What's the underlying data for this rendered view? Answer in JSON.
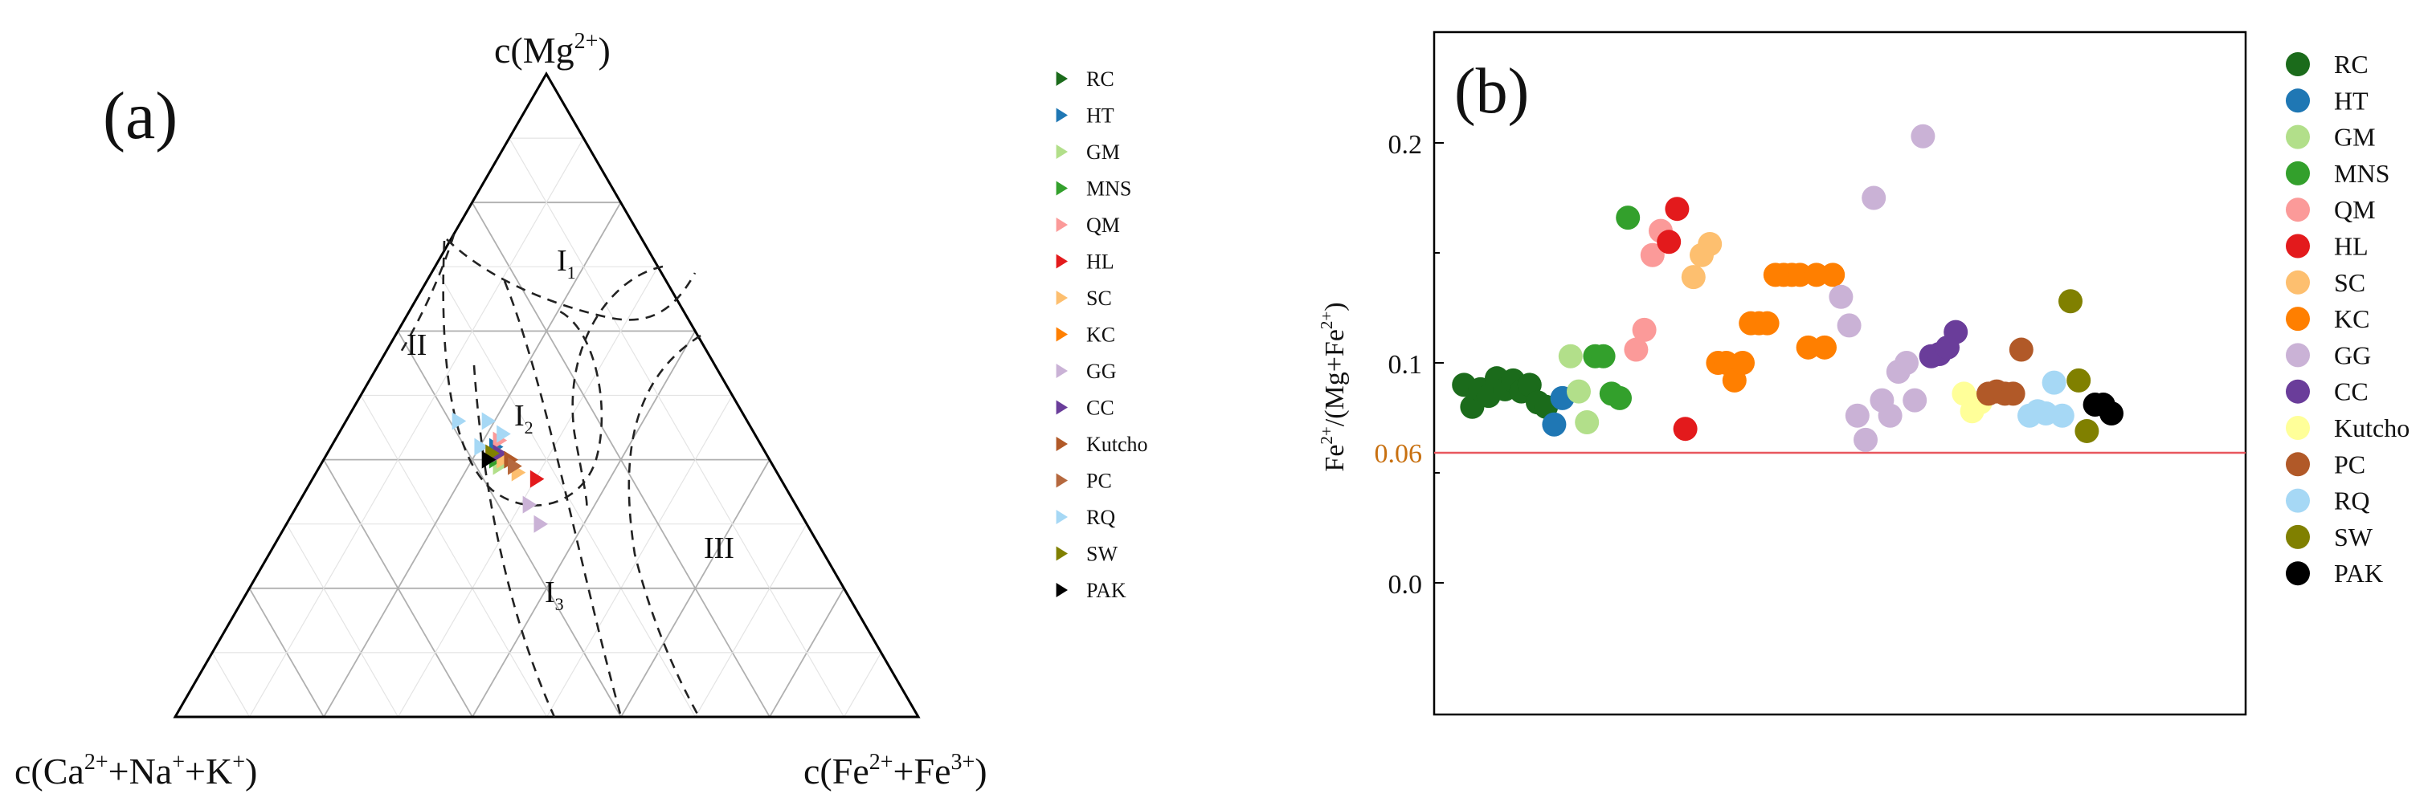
{
  "chart_data": [
    {
      "panel_label": "(a)",
      "type": "scatter",
      "subtype": "ternary",
      "vertex_labels": {
        "top": "c(Mg2+)",
        "left": "c(Ca2++Na++K+)",
        "right": "c(Fe2++Fe3+)"
      },
      "field_labels": [
        {
          "main": "I",
          "sub": "1"
        },
        {
          "main": "II",
          "sub": ""
        },
        {
          "main": "I",
          "sub": "2"
        },
        {
          "main": "I",
          "sub": "3"
        },
        {
          "main": "III",
          "sub": ""
        }
      ],
      "marker": "triangle-right",
      "legend_position": "right",
      "series": [
        {
          "name": "RC",
          "color": "#1b6b1b",
          "points": [
            [
              0.4,
              0.36,
              0.24
            ]
          ]
        },
        {
          "name": "HT",
          "color": "#1f77b4",
          "points": [
            [
              0.42,
              0.36,
              0.22
            ]
          ]
        },
        {
          "name": "GM",
          "color": "#b2df8a",
          "points": [
            [
              0.39,
              0.37,
              0.24
            ]
          ]
        },
        {
          "name": "MNS",
          "color": "#33a02c",
          "points": [
            [
              0.4,
              0.37,
              0.23
            ]
          ]
        },
        {
          "name": "QM",
          "color": "#fb9a99",
          "points": [
            [
              0.43,
              0.35,
              0.22
            ],
            [
              0.41,
              0.36,
              0.23
            ]
          ]
        },
        {
          "name": "HL",
          "color": "#e31a1c",
          "points": [
            [
              0.37,
              0.33,
              0.3
            ],
            [
              0.41,
              0.37,
              0.22
            ]
          ]
        },
        {
          "name": "SC",
          "color": "#fdbf6f",
          "points": [
            [
              0.38,
              0.35,
              0.27
            ],
            [
              0.4,
              0.36,
              0.24
            ]
          ]
        },
        {
          "name": "KC",
          "color": "#ff7f00",
          "points": [
            [
              0.41,
              0.36,
              0.23
            ],
            [
              0.39,
              0.35,
              0.26
            ]
          ]
        },
        {
          "name": "GG",
          "color": "#cab2d6",
          "points": [
            [
              0.33,
              0.36,
              0.31
            ],
            [
              0.3,
              0.36,
              0.34
            ]
          ]
        },
        {
          "name": "CC",
          "color": "#6a3d9a",
          "points": [
            [
              0.41,
              0.36,
              0.23
            ]
          ]
        },
        {
          "name": "Kutcho",
          "color": "#b15928",
          "points": [
            [
              0.4,
              0.35,
              0.25
            ]
          ]
        },
        {
          "name": "PC",
          "color": "#b5683e",
          "points": [
            [
              0.39,
              0.35,
              0.26
            ]
          ]
        },
        {
          "name": "RQ",
          "color": "#a6d8f5",
          "points": [
            [
              0.46,
              0.39,
              0.15
            ],
            [
              0.44,
              0.34,
              0.22
            ],
            [
              0.42,
              0.38,
              0.2
            ],
            [
              0.46,
              0.35,
              0.19
            ]
          ]
        },
        {
          "name": "SW",
          "color": "#808000",
          "points": [
            [
              0.41,
              0.37,
              0.22
            ]
          ]
        },
        {
          "name": "PAK",
          "color": "#000000",
          "points": [
            [
              0.4,
              0.38,
              0.22
            ]
          ]
        }
      ]
    },
    {
      "panel_label": "(b)",
      "type": "scatter",
      "ylabel": "Fe2+/(Mg+Fe2+)",
      "ytick_labels": [
        "0.0",
        "0.06",
        "0.1",
        "0.2"
      ],
      "reference_line": {
        "value": 0.06,
        "label": "0.06",
        "color": "#e8575e",
        "label_color": "#c87010"
      },
      "marker": "circle",
      "legend_position": "right",
      "series": [
        {
          "name": "RC",
          "color": "#1b6b1b",
          "values": [
            [
              1,
              0.09
            ],
            [
              2,
              0.08
            ],
            [
              3,
              0.088
            ],
            [
              4,
              0.085
            ],
            [
              5,
              0.093
            ],
            [
              6,
              0.088
            ],
            [
              7,
              0.092
            ],
            [
              8,
              0.087
            ],
            [
              9,
              0.09
            ],
            [
              10,
              0.082
            ],
            [
              11,
              0.08
            ]
          ]
        },
        {
          "name": "HT",
          "color": "#1f77b4",
          "values": [
            [
              12,
              0.072
            ],
            [
              13,
              0.084
            ]
          ]
        },
        {
          "name": "GM",
          "color": "#b2df8a",
          "values": [
            [
              14,
              0.103
            ],
            [
              15,
              0.087
            ],
            [
              16,
              0.073
            ]
          ]
        },
        {
          "name": "MNS",
          "color": "#33a02c",
          "values": [
            [
              17,
              0.103
            ],
            [
              18,
              0.103
            ],
            [
              19,
              0.086
            ],
            [
              20,
              0.084
            ],
            [
              21,
              0.166
            ]
          ]
        },
        {
          "name": "QM",
          "color": "#fb9a99",
          "values": [
            [
              22,
              0.106
            ],
            [
              23,
              0.115
            ],
            [
              24,
              0.149
            ],
            [
              25,
              0.16
            ]
          ]
        },
        {
          "name": "HL",
          "color": "#e31a1c",
          "values": [
            [
              26,
              0.155
            ],
            [
              27,
              0.17
            ],
            [
              28,
              0.07
            ]
          ]
        },
        {
          "name": "SC",
          "color": "#fdbf6f",
          "values": [
            [
              29,
              0.139
            ],
            [
              30,
              0.149
            ],
            [
              31,
              0.154
            ]
          ]
        },
        {
          "name": "KC",
          "color": "#ff7f00",
          "values": [
            [
              32,
              0.1
            ],
            [
              33,
              0.1
            ],
            [
              34,
              0.092
            ],
            [
              35,
              0.1
            ],
            [
              36,
              0.118
            ],
            [
              37,
              0.118
            ],
            [
              38,
              0.118
            ],
            [
              39,
              0.14
            ],
            [
              40,
              0.14
            ],
            [
              41,
              0.14
            ],
            [
              42,
              0.14
            ],
            [
              43,
              0.107
            ],
            [
              44,
              0.14
            ],
            [
              45,
              0.107
            ],
            [
              46,
              0.14
            ]
          ]
        },
        {
          "name": "GG",
          "color": "#cab2d6",
          "values": [
            [
              47,
              0.13
            ],
            [
              48,
              0.117
            ],
            [
              49,
              0.076
            ],
            [
              50,
              0.065
            ],
            [
              51,
              0.175
            ],
            [
              52,
              0.083
            ],
            [
              53,
              0.076
            ],
            [
              54,
              0.096
            ],
            [
              55,
              0.1
            ],
            [
              56,
              0.083
            ],
            [
              57,
              0.203
            ]
          ]
        },
        {
          "name": "CC",
          "color": "#6a3d9a",
          "values": [
            [
              58,
              0.103
            ],
            [
              59,
              0.104
            ],
            [
              60,
              0.107
            ],
            [
              61,
              0.114
            ]
          ]
        },
        {
          "name": "Kutcho",
          "color": "#ffff99",
          "values": [
            [
              62,
              0.086
            ],
            [
              63,
              0.078
            ],
            [
              64,
              0.082
            ]
          ]
        },
        {
          "name": "PC",
          "color": "#b15928",
          "values": [
            [
              65,
              0.086
            ],
            [
              66,
              0.087
            ],
            [
              67,
              0.086
            ],
            [
              68,
              0.086
            ],
            [
              69,
              0.106
            ]
          ]
        },
        {
          "name": "RQ",
          "color": "#a6d8f5",
          "values": [
            [
              70,
              0.076
            ],
            [
              71,
              0.078
            ],
            [
              72,
              0.077
            ],
            [
              73,
              0.091
            ],
            [
              74,
              0.076
            ]
          ]
        },
        {
          "name": "SW",
          "color": "#808000",
          "values": [
            [
              75,
              0.128
            ],
            [
              76,
              0.092
            ],
            [
              77,
              0.069
            ]
          ]
        },
        {
          "name": "PAK",
          "color": "#000000",
          "values": [
            [
              78,
              0.081
            ],
            [
              79,
              0.081
            ],
            [
              80,
              0.077
            ]
          ]
        }
      ]
    }
  ]
}
